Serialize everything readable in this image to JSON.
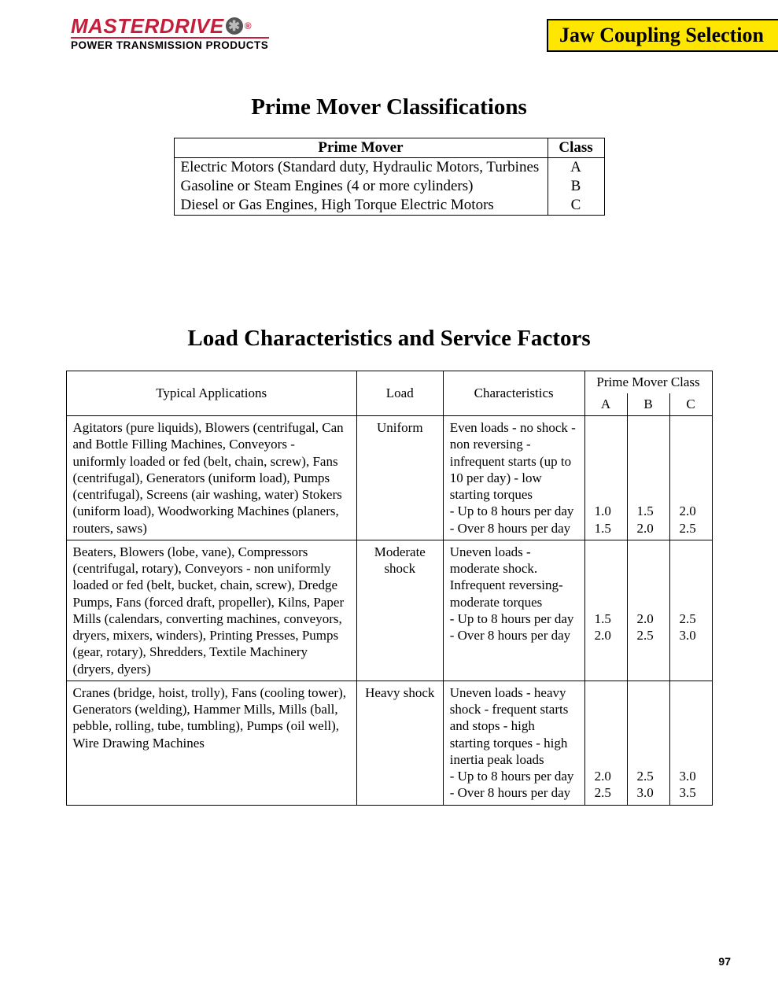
{
  "header": {
    "logo_main": "MASTERDRIVE",
    "logo_sub": "POWER TRANSMISSION PRODUCTS",
    "banner": "Jaw Coupling Selection"
  },
  "section1": {
    "title": "Prime Mover Classifications",
    "columns": [
      "Prime Mover",
      "Class"
    ],
    "rows": [
      {
        "mover": "Electric Motors (Standard duty, Hydraulic Motors, Turbines",
        "class": "A"
      },
      {
        "mover": "Gasoline or Steam Engines (4 or more cylinders)",
        "class": "B"
      },
      {
        "mover": "Diesel or Gas Engines, High Torque Electric Motors",
        "class": "C"
      }
    ]
  },
  "section2": {
    "title": "Load Characteristics and Service Factors",
    "head": {
      "applications": "Typical Applications",
      "load": "Load",
      "characteristics": "Characteristics",
      "pmc_title": "Prime Mover Class",
      "pmc_cols": [
        "A",
        "B",
        "C"
      ]
    },
    "rows": [
      {
        "applications": "Agitators (pure liquids), Blowers (centrifugal, Can and Bottle Filling Machines, Conveyors - uniformly loaded or fed (belt, chain, screw), Fans (centrifugal), Generators (uniform load), Pumps (centrifugal), Screens (air washing, water) Stokers (uniform load), Woodworking Machines (planers, routers, saws)",
        "load": "Uniform",
        "characteristics": "Even loads - no shock - non reversing - infrequent starts (up to 10 per day) - low starting torques\n- Up to 8 hours per day\n- Over 8 hours per day",
        "a": "\n\n\n\n\n1.0\n1.5",
        "b": "\n\n\n\n\n1.5\n2.0",
        "c": "\n\n\n\n\n2.0\n2.5"
      },
      {
        "applications": "Beaters, Blowers (lobe, vane), Compressors (centrifugal, rotary), Conveyors - non uniformly loaded or fed (belt, bucket, chain, screw), Dredge Pumps, Fans (forced draft, propeller), Kilns, Paper Mills (calendars, converting machines, conveyors, dryers, mixers, winders), Printing Presses, Pumps (gear, rotary), Shredders, Textile Machinery (dryers, dyers)",
        "load": "Moderate shock",
        "characteristics": "Uneven loads - moderate shock. Infrequent reversing-moderate torques\n- Up to 8 hours per day\n- Over 8 hours per day",
        "a": "\n\n\n\n1.5\n2.0",
        "b": "\n\n\n\n2.0\n2.5",
        "c": "\n\n\n\n2.5\n3.0"
      },
      {
        "applications": "Cranes (bridge, hoist, trolly), Fans (cooling tower), Generators (welding), Hammer Mills, Mills (ball, pebble, rolling, tube, tumbling), Pumps (oil well), Wire Drawing Machines",
        "load": "Heavy shock",
        "characteristics": "Uneven loads - heavy shock - frequent starts and stops - high starting torques - high inertia peak loads\n- Up to 8 hours per day\n- Over 8 hours per day",
        "a": "\n\n\n\n\n2.0\n2.5",
        "b": "\n\n\n\n\n2.5\n3.0",
        "c": "\n\n\n\n\n3.0\n3.5"
      }
    ]
  },
  "page_number": "97",
  "colors": {
    "brand_red": "#c41e3a",
    "banner_yellow": "#ffe600",
    "text": "#000000",
    "background": "#ffffff"
  }
}
